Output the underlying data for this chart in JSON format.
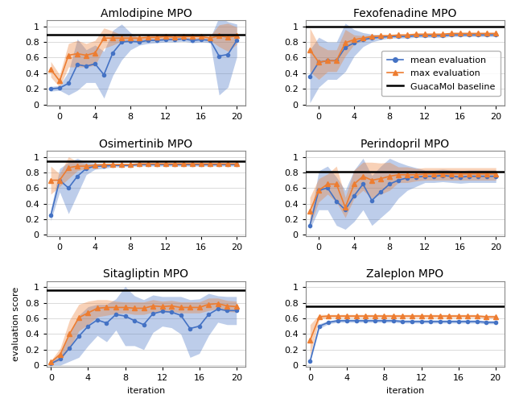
{
  "titles": [
    "Amlodipine MPO",
    "Fexofenadine MPO",
    "Osimertinib MPO",
    "Perindopril MPO",
    "Sitagliptin MPO",
    "Zaleplon MPO"
  ],
  "baselines": [
    0.894,
    1.0,
    0.947,
    0.807,
    0.958,
    0.754
  ],
  "xlim": [
    -1.5,
    21
  ],
  "ylim": [
    -0.02,
    1.08
  ],
  "yticks": [
    0,
    0.2,
    0.4,
    0.6,
    0.8,
    1
  ],
  "xticks": [
    0,
    4,
    8,
    12,
    16,
    20
  ],
  "mean_color": "#4472c4",
  "max_color": "#ed7d31",
  "amlodipine_x": [
    -1,
    0,
    1,
    2,
    3,
    4,
    5,
    6,
    7,
    8,
    9,
    10,
    11,
    12,
    13,
    14,
    15,
    16,
    17,
    18,
    19,
    20
  ],
  "amlodipine_mean": [
    0.2,
    0.21,
    0.27,
    0.51,
    0.49,
    0.52,
    0.38,
    0.66,
    0.8,
    0.81,
    0.8,
    0.82,
    0.82,
    0.83,
    0.83,
    0.84,
    0.82,
    0.83,
    0.82,
    0.62,
    0.64,
    0.82
  ],
  "amlodipine_mean_low": [
    0.17,
    0.18,
    0.12,
    0.18,
    0.28,
    0.28,
    0.08,
    0.37,
    0.57,
    0.7,
    0.76,
    0.78,
    0.79,
    0.8,
    0.8,
    0.81,
    0.79,
    0.8,
    0.79,
    0.12,
    0.22,
    0.61
  ],
  "amlodipine_mean_high": [
    0.23,
    0.24,
    0.42,
    0.84,
    0.7,
    0.76,
    0.68,
    0.95,
    1.03,
    0.92,
    0.84,
    0.86,
    0.85,
    0.86,
    0.86,
    0.87,
    0.85,
    0.86,
    0.85,
    1.12,
    1.06,
    1.03
  ],
  "amlodipine_max": [
    0.45,
    0.3,
    0.63,
    0.65,
    0.63,
    0.66,
    0.85,
    0.85,
    0.85,
    0.85,
    0.85,
    0.86,
    0.86,
    0.87,
    0.86,
    0.87,
    0.87,
    0.87,
    0.85,
    0.88,
    0.86,
    0.88
  ],
  "amlodipine_max_low": [
    0.35,
    0.22,
    0.48,
    0.48,
    0.48,
    0.5,
    0.72,
    0.76,
    0.81,
    0.82,
    0.82,
    0.83,
    0.83,
    0.84,
    0.83,
    0.84,
    0.84,
    0.84,
    0.82,
    0.74,
    0.68,
    0.77
  ],
  "amlodipine_max_high": [
    0.55,
    0.38,
    0.78,
    0.82,
    0.78,
    0.82,
    0.98,
    0.94,
    0.89,
    0.88,
    0.88,
    0.89,
    0.89,
    0.9,
    0.89,
    0.9,
    0.9,
    0.9,
    0.88,
    1.02,
    1.04,
    0.99
  ],
  "fexofenadine_x": [
    -1,
    0,
    1,
    2,
    3,
    4,
    5,
    6,
    7,
    8,
    9,
    10,
    11,
    12,
    13,
    14,
    15,
    16,
    17,
    18,
    19,
    20
  ],
  "fexofenadine_mean": [
    0.36,
    0.54,
    0.56,
    0.56,
    0.73,
    0.79,
    0.83,
    0.85,
    0.86,
    0.87,
    0.87,
    0.87,
    0.88,
    0.88,
    0.88,
    0.88,
    0.89,
    0.89,
    0.89,
    0.89,
    0.89,
    0.89
  ],
  "fexofenadine_mean_low": [
    0.02,
    0.22,
    0.32,
    0.32,
    0.42,
    0.62,
    0.74,
    0.8,
    0.83,
    0.85,
    0.85,
    0.85,
    0.86,
    0.86,
    0.86,
    0.86,
    0.87,
    0.87,
    0.87,
    0.87,
    0.87,
    0.87
  ],
  "fexofenadine_mean_high": [
    0.7,
    0.86,
    0.8,
    0.8,
    1.04,
    0.96,
    0.92,
    0.9,
    0.89,
    0.89,
    0.89,
    0.89,
    0.9,
    0.9,
    0.9,
    0.9,
    0.91,
    0.91,
    0.91,
    0.91,
    0.91,
    0.91
  ],
  "fexofenadine_max": [
    0.7,
    0.54,
    0.56,
    0.56,
    0.79,
    0.83,
    0.85,
    0.87,
    0.88,
    0.88,
    0.89,
    0.89,
    0.9,
    0.9,
    0.9,
    0.9,
    0.91,
    0.91,
    0.91,
    0.91,
    0.91,
    0.91
  ],
  "fexofenadine_max_low": [
    0.42,
    0.32,
    0.42,
    0.42,
    0.62,
    0.77,
    0.82,
    0.85,
    0.87,
    0.87,
    0.88,
    0.88,
    0.89,
    0.89,
    0.89,
    0.89,
    0.9,
    0.9,
    0.9,
    0.9,
    0.9,
    0.9
  ],
  "fexofenadine_max_high": [
    0.98,
    0.76,
    0.7,
    0.7,
    0.96,
    0.89,
    0.88,
    0.89,
    0.89,
    0.89,
    0.9,
    0.9,
    0.91,
    0.91,
    0.91,
    0.91,
    0.92,
    0.92,
    0.92,
    0.92,
    0.92,
    0.92
  ],
  "osimertinib_x": [
    -1,
    0,
    1,
    2,
    3,
    4,
    5,
    6,
    7,
    8,
    9,
    10,
    11,
    12,
    13,
    14,
    15,
    16,
    17,
    18,
    19,
    20
  ],
  "osimertinib_mean": [
    0.25,
    0.7,
    0.6,
    0.75,
    0.85,
    0.88,
    0.88,
    0.89,
    0.89,
    0.89,
    0.9,
    0.9,
    0.9,
    0.9,
    0.9,
    0.9,
    0.9,
    0.9,
    0.9,
    0.9,
    0.9,
    0.9
  ],
  "osimertinib_mean_low": [
    0.18,
    0.55,
    0.27,
    0.52,
    0.77,
    0.84,
    0.85,
    0.87,
    0.87,
    0.88,
    0.88,
    0.88,
    0.88,
    0.88,
    0.88,
    0.88,
    0.88,
    0.88,
    0.88,
    0.88,
    0.88,
    0.88
  ],
  "osimertinib_mean_high": [
    0.32,
    0.85,
    0.93,
    0.98,
    0.93,
    0.92,
    0.91,
    0.91,
    0.91,
    0.9,
    0.92,
    0.92,
    0.92,
    0.92,
    0.92,
    0.92,
    0.92,
    0.92,
    0.92,
    0.92,
    0.92,
    0.92
  ],
  "osimertinib_max": [
    0.7,
    0.7,
    0.86,
    0.88,
    0.88,
    0.89,
    0.9,
    0.9,
    0.9,
    0.9,
    0.91,
    0.91,
    0.91,
    0.91,
    0.91,
    0.91,
    0.91,
    0.91,
    0.91,
    0.91,
    0.91,
    0.91
  ],
  "osimertinib_max_low": [
    0.52,
    0.62,
    0.72,
    0.82,
    0.85,
    0.87,
    0.89,
    0.89,
    0.89,
    0.89,
    0.9,
    0.9,
    0.9,
    0.9,
    0.9,
    0.9,
    0.9,
    0.9,
    0.9,
    0.9,
    0.9,
    0.9
  ],
  "osimertinib_max_high": [
    0.88,
    0.78,
    1.0,
    0.94,
    0.91,
    0.91,
    0.91,
    0.91,
    0.91,
    0.91,
    0.92,
    0.92,
    0.92,
    0.92,
    0.92,
    0.92,
    0.92,
    0.92,
    0.92,
    0.92,
    0.92,
    0.92
  ],
  "perindopril_x": [
    -1,
    0,
    1,
    2,
    3,
    4,
    5,
    6,
    7,
    8,
    9,
    10,
    11,
    12,
    13,
    14,
    15,
    16,
    17,
    18,
    19,
    20
  ],
  "perindopril_mean": [
    0.12,
    0.57,
    0.6,
    0.43,
    0.32,
    0.5,
    0.65,
    0.44,
    0.55,
    0.65,
    0.7,
    0.73,
    0.74,
    0.75,
    0.75,
    0.76,
    0.75,
    0.74,
    0.75,
    0.75,
    0.75,
    0.75
  ],
  "perindopril_mean_low": [
    0.07,
    0.32,
    0.32,
    0.12,
    0.07,
    0.17,
    0.32,
    0.12,
    0.22,
    0.32,
    0.47,
    0.57,
    0.62,
    0.67,
    0.67,
    0.68,
    0.67,
    0.66,
    0.67,
    0.67,
    0.67,
    0.67
  ],
  "perindopril_mean_high": [
    0.17,
    0.82,
    0.88,
    0.74,
    0.57,
    0.83,
    0.98,
    0.76,
    0.88,
    0.98,
    0.93,
    0.89,
    0.86,
    0.83,
    0.83,
    0.84,
    0.83,
    0.82,
    0.83,
    0.83,
    0.83,
    0.83
  ],
  "perindopril_max": [
    0.3,
    0.57,
    0.65,
    0.65,
    0.35,
    0.65,
    0.75,
    0.7,
    0.72,
    0.75,
    0.77,
    0.77,
    0.77,
    0.78,
    0.78,
    0.78,
    0.78,
    0.78,
    0.78,
    0.78,
    0.78,
    0.78
  ],
  "perindopril_max_low": [
    0.12,
    0.42,
    0.52,
    0.42,
    0.22,
    0.47,
    0.57,
    0.47,
    0.52,
    0.57,
    0.67,
    0.67,
    0.69,
    0.7,
    0.7,
    0.7,
    0.7,
    0.7,
    0.7,
    0.7,
    0.7,
    0.7
  ],
  "perindopril_max_high": [
    0.48,
    0.72,
    0.78,
    0.88,
    0.48,
    0.83,
    0.93,
    0.93,
    0.92,
    0.93,
    0.87,
    0.87,
    0.85,
    0.86,
    0.86,
    0.86,
    0.86,
    0.86,
    0.86,
    0.86,
    0.86,
    0.86
  ],
  "sitagliptin_x": [
    0,
    1,
    2,
    3,
    4,
    5,
    6,
    7,
    8,
    9,
    10,
    11,
    12,
    13,
    14,
    15,
    16,
    17,
    18,
    19,
    20
  ],
  "sitagliptin_mean": [
    0.02,
    0.08,
    0.22,
    0.37,
    0.5,
    0.58,
    0.54,
    0.65,
    0.63,
    0.57,
    0.52,
    0.66,
    0.69,
    0.68,
    0.64,
    0.47,
    0.5,
    0.65,
    0.72,
    0.7,
    0.7
  ],
  "sitagliptin_mean_low": [
    0.0,
    0.0,
    0.05,
    0.1,
    0.25,
    0.38,
    0.3,
    0.45,
    0.25,
    0.25,
    0.2,
    0.42,
    0.5,
    0.48,
    0.4,
    0.1,
    0.15,
    0.38,
    0.55,
    0.52,
    0.52
  ],
  "sitagliptin_mean_high": [
    0.04,
    0.16,
    0.39,
    0.64,
    0.75,
    0.78,
    0.78,
    0.85,
    1.01,
    0.89,
    0.84,
    0.9,
    0.88,
    0.88,
    0.88,
    0.84,
    0.85,
    0.92,
    0.89,
    0.88,
    0.88
  ],
  "sitagliptin_max": [
    0.04,
    0.14,
    0.4,
    0.61,
    0.67,
    0.73,
    0.74,
    0.74,
    0.74,
    0.73,
    0.73,
    0.76,
    0.75,
    0.76,
    0.74,
    0.74,
    0.74,
    0.78,
    0.79,
    0.76,
    0.75
  ],
  "sitagliptin_max_low": [
    0.02,
    0.06,
    0.22,
    0.44,
    0.52,
    0.62,
    0.64,
    0.66,
    0.67,
    0.65,
    0.65,
    0.68,
    0.68,
    0.69,
    0.67,
    0.67,
    0.67,
    0.7,
    0.72,
    0.69,
    0.68
  ],
  "sitagliptin_max_high": [
    0.06,
    0.22,
    0.58,
    0.78,
    0.82,
    0.84,
    0.84,
    0.82,
    0.81,
    0.81,
    0.81,
    0.84,
    0.82,
    0.83,
    0.81,
    0.81,
    0.81,
    0.86,
    0.86,
    0.83,
    0.82
  ],
  "zaleplon_x": [
    0,
    1,
    2,
    3,
    4,
    5,
    6,
    7,
    8,
    9,
    10,
    11,
    12,
    13,
    14,
    15,
    16,
    17,
    18,
    19,
    20
  ],
  "zaleplon_mean": [
    0.05,
    0.5,
    0.55,
    0.57,
    0.57,
    0.57,
    0.57,
    0.57,
    0.57,
    0.57,
    0.56,
    0.56,
    0.56,
    0.56,
    0.56,
    0.56,
    0.56,
    0.56,
    0.56,
    0.55,
    0.55
  ],
  "zaleplon_mean_low": [
    0.03,
    0.47,
    0.53,
    0.55,
    0.55,
    0.55,
    0.55,
    0.55,
    0.55,
    0.55,
    0.54,
    0.54,
    0.54,
    0.54,
    0.54,
    0.54,
    0.54,
    0.54,
    0.54,
    0.53,
    0.53
  ],
  "zaleplon_mean_high": [
    0.07,
    0.53,
    0.57,
    0.59,
    0.59,
    0.59,
    0.59,
    0.59,
    0.59,
    0.59,
    0.58,
    0.58,
    0.58,
    0.58,
    0.58,
    0.58,
    0.58,
    0.58,
    0.58,
    0.57,
    0.57
  ],
  "zaleplon_max": [
    0.32,
    0.62,
    0.63,
    0.63,
    0.63,
    0.63,
    0.63,
    0.63,
    0.63,
    0.63,
    0.63,
    0.63,
    0.63,
    0.63,
    0.63,
    0.63,
    0.63,
    0.63,
    0.63,
    0.62,
    0.62
  ],
  "zaleplon_max_low": [
    0.12,
    0.59,
    0.61,
    0.61,
    0.61,
    0.61,
    0.61,
    0.61,
    0.61,
    0.61,
    0.61,
    0.61,
    0.61,
    0.61,
    0.61,
    0.61,
    0.61,
    0.61,
    0.61,
    0.6,
    0.6
  ],
  "zaleplon_max_high": [
    0.52,
    0.65,
    0.65,
    0.65,
    0.65,
    0.65,
    0.65,
    0.65,
    0.65,
    0.65,
    0.65,
    0.65,
    0.65,
    0.65,
    0.65,
    0.65,
    0.65,
    0.65,
    0.65,
    0.64,
    0.64
  ],
  "ylabel": "evaluation score",
  "xlabel": "iteration",
  "fig_width": 6.4,
  "fig_height": 5.0,
  "title_fontsize": 10,
  "label_fontsize": 8,
  "tick_fontsize": 8,
  "legend_fontsize": 8
}
